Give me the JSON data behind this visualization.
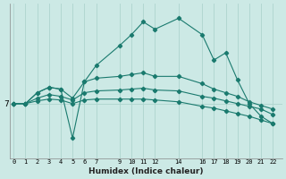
{
  "xlabel": "Humidex (Indice chaleur)",
  "bg_color": "#cce9e5",
  "line_color": "#1a7a6e",
  "grid_color": "#aed4ce",
  "x_ticks": [
    0,
    1,
    2,
    3,
    4,
    5,
    6,
    7,
    9,
    10,
    11,
    12,
    14,
    16,
    17,
    18,
    19,
    20,
    21,
    22
  ],
  "xlim": [
    -0.3,
    22.8
  ],
  "ylim": [
    4.0,
    12.5
  ],
  "y_tick_val": 7,
  "series": {
    "xs": [
      0,
      1,
      2,
      3,
      4,
      5,
      6,
      7,
      9,
      10,
      11,
      12,
      14,
      16,
      17,
      18,
      19,
      20,
      21,
      22
    ],
    "line1": [
      7.0,
      7.0,
      7.6,
      7.9,
      7.8,
      5.1,
      8.2,
      9.1,
      10.2,
      10.8,
      11.5,
      11.1,
      11.7,
      10.8,
      9.4,
      9.8,
      8.3,
      7.0,
      6.3,
      5.9
    ],
    "line2": [
      7.0,
      7.0,
      7.6,
      7.9,
      7.8,
      7.3,
      8.2,
      8.4,
      8.5,
      8.6,
      8.7,
      8.5,
      8.5,
      8.1,
      7.8,
      7.6,
      7.4,
      7.1,
      6.9,
      6.7
    ],
    "line3": [
      7.0,
      7.0,
      7.3,
      7.5,
      7.4,
      7.2,
      7.6,
      7.7,
      7.75,
      7.8,
      7.85,
      7.75,
      7.7,
      7.4,
      7.3,
      7.15,
      7.0,
      6.85,
      6.7,
      6.4
    ],
    "line4": [
      7.0,
      7.0,
      7.15,
      7.25,
      7.2,
      7.0,
      7.2,
      7.25,
      7.25,
      7.25,
      7.25,
      7.2,
      7.1,
      6.85,
      6.75,
      6.6,
      6.45,
      6.3,
      6.1,
      5.9
    ]
  }
}
